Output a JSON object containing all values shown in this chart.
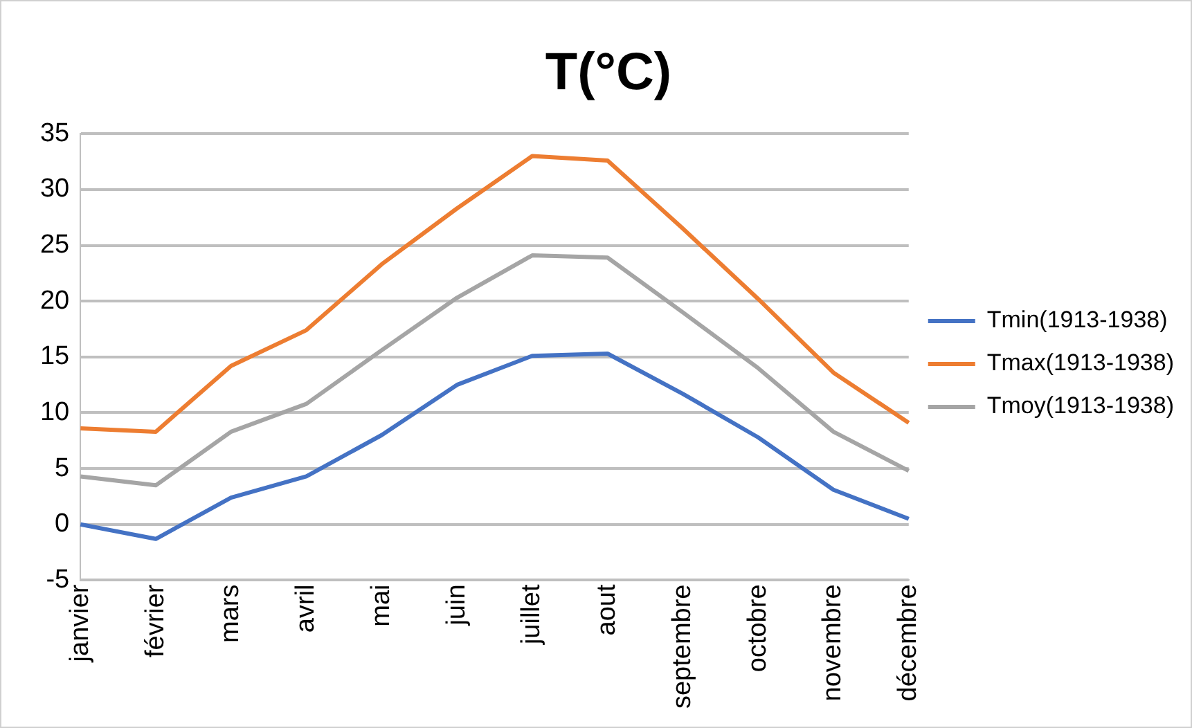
{
  "chart_data": {
    "type": "line",
    "title": "T(°C)",
    "categories": [
      "janvier",
      "février",
      "mars",
      "avril",
      "mai",
      "juin",
      "juillet",
      "aout",
      "septembre",
      "octobre",
      "novembre",
      "décembre"
    ],
    "series": [
      {
        "name": "Tmin(1913-1938)",
        "color": "#4472c4",
        "values": [
          0,
          -1.3,
          2.4,
          4.3,
          8,
          12.5,
          15.1,
          15.3,
          11.7,
          7.8,
          3.1,
          0.5
        ]
      },
      {
        "name": "Tmax(1913-1938)",
        "color": "#ed7d31",
        "values": [
          8.6,
          8.3,
          14.2,
          17.4,
          23.3,
          28.3,
          33.0,
          32.6,
          26.5,
          20.2,
          13.6,
          9.1
        ]
      },
      {
        "name": "Tmoy(1913-1938)",
        "color": "#a5a5a5",
        "values": [
          4.3,
          3.5,
          8.3,
          10.8,
          15.6,
          20.3,
          24.1,
          23.9,
          19.0,
          14.0,
          8.3,
          4.8
        ]
      }
    ],
    "ylim": [
      -5,
      35
    ],
    "yticks": [
      -5,
      0,
      5,
      10,
      15,
      20,
      25,
      30,
      35
    ],
    "grid": "y",
    "legend": "right",
    "marker": "none",
    "line_style": "solid"
  }
}
